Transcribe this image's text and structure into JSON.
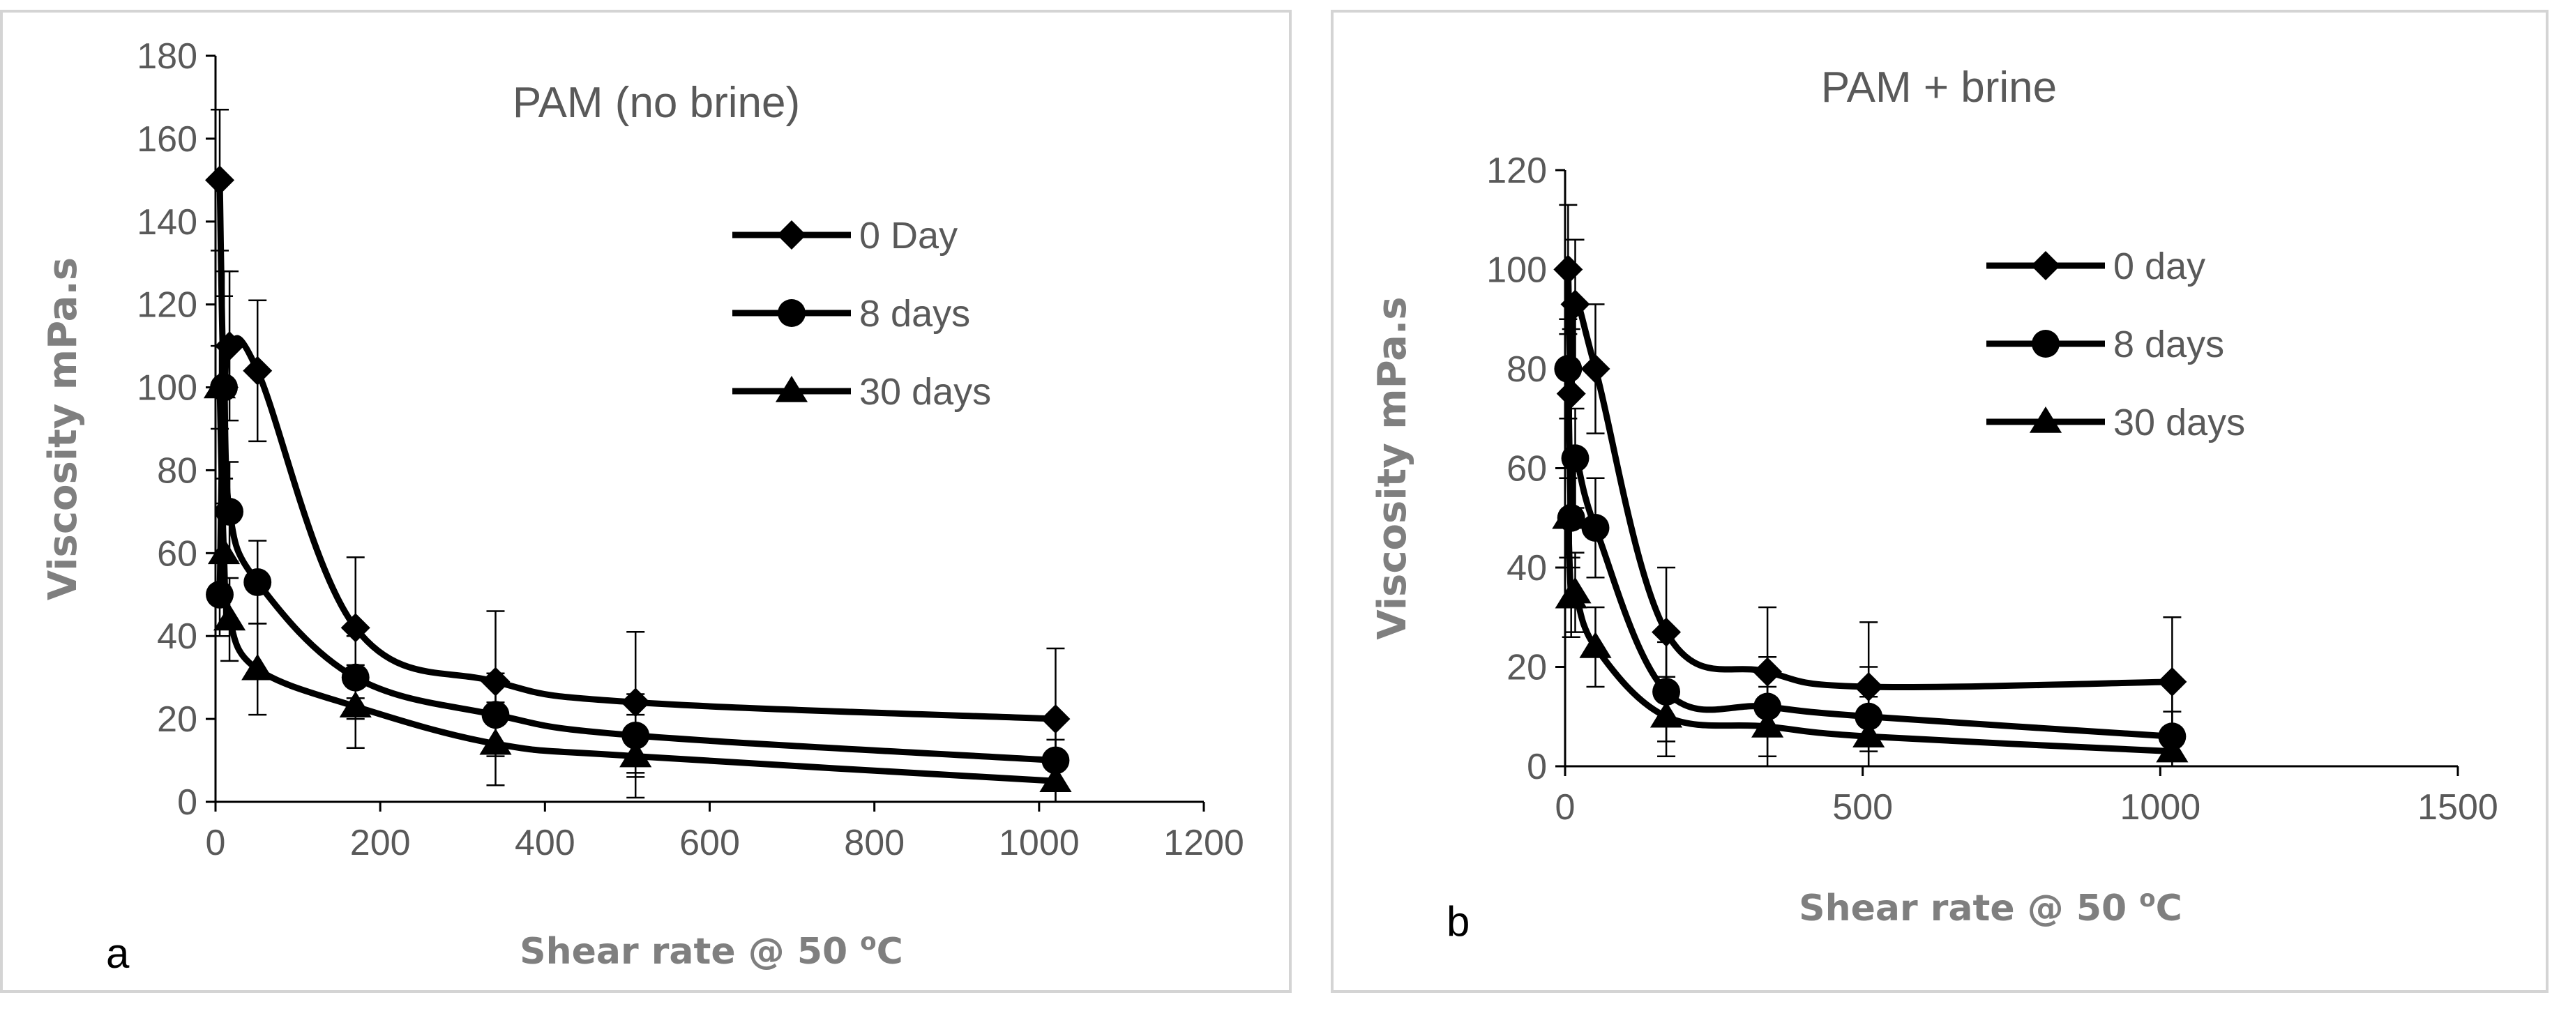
{
  "chart_data": [
    {
      "id": "a",
      "type": "line",
      "panel_label": "a",
      "title": "PAM (no brine)",
      "xlabel": "Shear rate @ 50",
      "xlabel_unit": "oC",
      "ylabel": "Viscosity mPa.s",
      "xlim": [
        0,
        1200
      ],
      "ylim": [
        0,
        180
      ],
      "xticks": [
        0,
        200,
        400,
        600,
        800,
        1000,
        1200
      ],
      "yticks": [
        0,
        20,
        40,
        60,
        80,
        100,
        120,
        140,
        160,
        180
      ],
      "legend_position": "top-right",
      "series": [
        {
          "name": "0 Day",
          "marker": "diamond",
          "x": [
            5.1,
            10.2,
            17,
            51,
            170,
            340,
            510,
            1020
          ],
          "y": [
            150,
            100,
            110,
            104,
            42,
            29,
            24,
            20
          ],
          "err": [
            17,
            28,
            18,
            17,
            17,
            17,
            17,
            17
          ]
        },
        {
          "name": "8 days",
          "marker": "circle",
          "x": [
            5.1,
            10.2,
            17,
            51,
            170,
            340,
            510,
            1020
          ],
          "y": [
            50,
            100,
            70,
            53,
            30,
            21,
            16,
            10
          ],
          "err": [
            10,
            22,
            12,
            10,
            10,
            10,
            10,
            10
          ]
        },
        {
          "name": "30 days",
          "marker": "triangle",
          "x": [
            5.1,
            10.2,
            17,
            51,
            170,
            340,
            510,
            1020
          ],
          "y": [
            100,
            60,
            44,
            32,
            23,
            14,
            11,
            5
          ],
          "err": [
            10,
            18,
            10,
            11,
            10,
            10,
            10,
            10
          ]
        }
      ]
    },
    {
      "id": "b",
      "type": "line",
      "panel_label": "b",
      "title": "PAM + brine",
      "xlabel": "Shear rate @ 50",
      "xlabel_unit": "oC",
      "ylabel": "Viscosity mPa.s",
      "xlim": [
        0,
        1500
      ],
      "ylim": [
        0,
        120
      ],
      "xticks": [
        0,
        500,
        1000,
        1500
      ],
      "yticks": [
        0,
        20,
        40,
        60,
        80,
        100,
        120
      ],
      "legend_position": "top-right",
      "series": [
        {
          "name": "0 day",
          "marker": "diamond",
          "x": [
            5.1,
            10.2,
            17,
            51,
            170,
            340,
            510,
            1020
          ],
          "y": [
            100,
            75,
            93,
            80,
            27,
            19,
            16,
            17
          ],
          "err": [
            13,
            13,
            13,
            13,
            13,
            13,
            13,
            13
          ]
        },
        {
          "name": "8 days",
          "marker": "circle",
          "x": [
            5.1,
            10.2,
            17,
            51,
            170,
            340,
            510,
            1020
          ],
          "y": [
            80,
            50,
            62,
            48,
            15,
            12,
            10,
            6
          ],
          "err": [
            10,
            10,
            10,
            10,
            10,
            10,
            10,
            10
          ]
        },
        {
          "name": "30 days",
          "marker": "triangle",
          "x": [
            5.1,
            10.2,
            17,
            51,
            170,
            340,
            510,
            1020
          ],
          "y": [
            50,
            34,
            35,
            24,
            10,
            8,
            6,
            3
          ],
          "err": [
            8,
            8,
            8,
            8,
            8,
            8,
            8,
            8
          ]
        }
      ]
    }
  ]
}
